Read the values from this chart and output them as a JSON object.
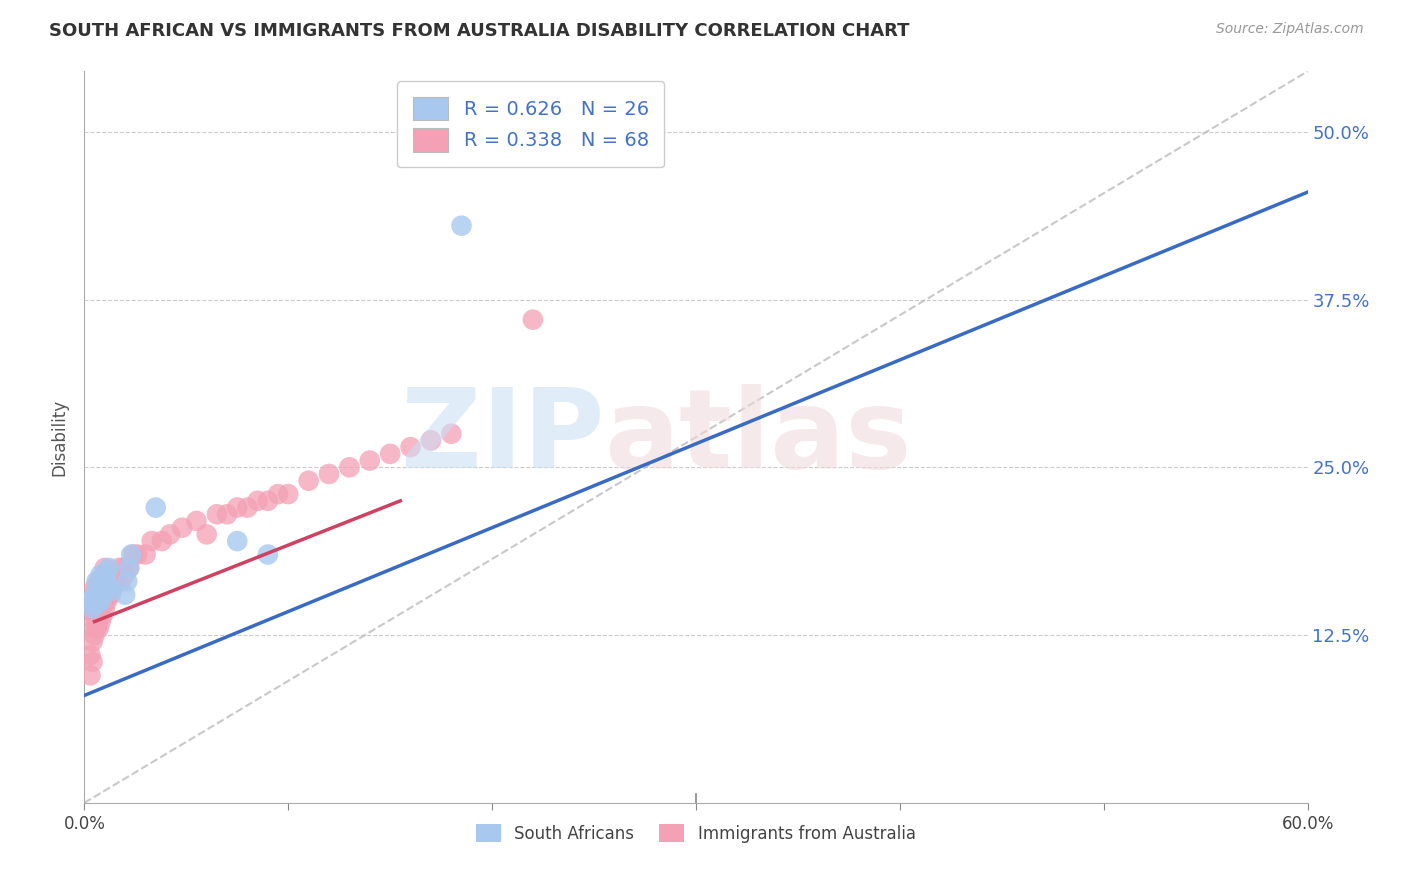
{
  "title": "SOUTH AFRICAN VS IMMIGRANTS FROM AUSTRALIA DISABILITY CORRELATION CHART",
  "source": "Source: ZipAtlas.com",
  "ylabel": "Disability",
  "xlim": [
    0.0,
    0.6
  ],
  "ylim": [
    0.0,
    0.545
  ],
  "yticks": [
    0.125,
    0.25,
    0.375,
    0.5
  ],
  "yticklabels": [
    "12.5%",
    "25.0%",
    "37.5%",
    "50.0%"
  ],
  "blue_color": "#A8C8F0",
  "pink_color": "#F4A0B5",
  "blue_line_color": "#3A6BC4",
  "pink_line_color": "#D04060",
  "blue_line_x": [
    0.0,
    0.6
  ],
  "blue_line_y": [
    0.08,
    0.455
  ],
  "pink_line_x": [
    0.005,
    0.155
  ],
  "pink_line_y": [
    0.135,
    0.225
  ],
  "dash_line_x": [
    0.0,
    0.6
  ],
  "dash_line_y": [
    0.0,
    0.545
  ],
  "grid_color": "#CCCCCC",
  "south_africans_x": [
    0.003,
    0.004,
    0.005,
    0.006,
    0.006,
    0.007,
    0.007,
    0.008,
    0.008,
    0.009,
    0.009,
    0.01,
    0.01,
    0.011,
    0.011,
    0.012,
    0.012,
    0.013,
    0.02,
    0.021,
    0.022,
    0.023,
    0.035,
    0.075,
    0.09,
    0.185
  ],
  "south_africans_y": [
    0.15,
    0.145,
    0.155,
    0.148,
    0.165,
    0.155,
    0.16,
    0.15,
    0.17,
    0.158,
    0.165,
    0.158,
    0.168,
    0.16,
    0.172,
    0.162,
    0.175,
    0.158,
    0.155,
    0.165,
    0.175,
    0.185,
    0.22,
    0.195,
    0.185,
    0.43
  ],
  "australia_x": [
    0.003,
    0.003,
    0.004,
    0.004,
    0.005,
    0.005,
    0.005,
    0.005,
    0.005,
    0.005,
    0.005,
    0.006,
    0.006,
    0.006,
    0.006,
    0.007,
    0.007,
    0.007,
    0.007,
    0.008,
    0.008,
    0.008,
    0.009,
    0.009,
    0.01,
    0.01,
    0.01,
    0.01,
    0.011,
    0.011,
    0.012,
    0.012,
    0.013,
    0.013,
    0.014,
    0.015,
    0.016,
    0.017,
    0.018,
    0.019,
    0.02,
    0.022,
    0.024,
    0.026,
    0.03,
    0.033,
    0.038,
    0.042,
    0.048,
    0.055,
    0.06,
    0.065,
    0.07,
    0.075,
    0.08,
    0.085,
    0.09,
    0.095,
    0.1,
    0.11,
    0.12,
    0.13,
    0.14,
    0.15,
    0.16,
    0.17,
    0.18,
    0.22
  ],
  "australia_y": [
    0.11,
    0.095,
    0.12,
    0.105,
    0.13,
    0.125,
    0.14,
    0.135,
    0.15,
    0.145,
    0.16,
    0.13,
    0.14,
    0.15,
    0.16,
    0.13,
    0.145,
    0.155,
    0.165,
    0.135,
    0.15,
    0.16,
    0.14,
    0.16,
    0.145,
    0.155,
    0.165,
    0.175,
    0.15,
    0.165,
    0.155,
    0.17,
    0.155,
    0.17,
    0.16,
    0.165,
    0.17,
    0.175,
    0.165,
    0.175,
    0.17,
    0.175,
    0.185,
    0.185,
    0.185,
    0.195,
    0.195,
    0.2,
    0.205,
    0.21,
    0.2,
    0.215,
    0.215,
    0.22,
    0.22,
    0.225,
    0.225,
    0.23,
    0.23,
    0.24,
    0.245,
    0.25,
    0.255,
    0.26,
    0.265,
    0.27,
    0.275,
    0.36
  ]
}
